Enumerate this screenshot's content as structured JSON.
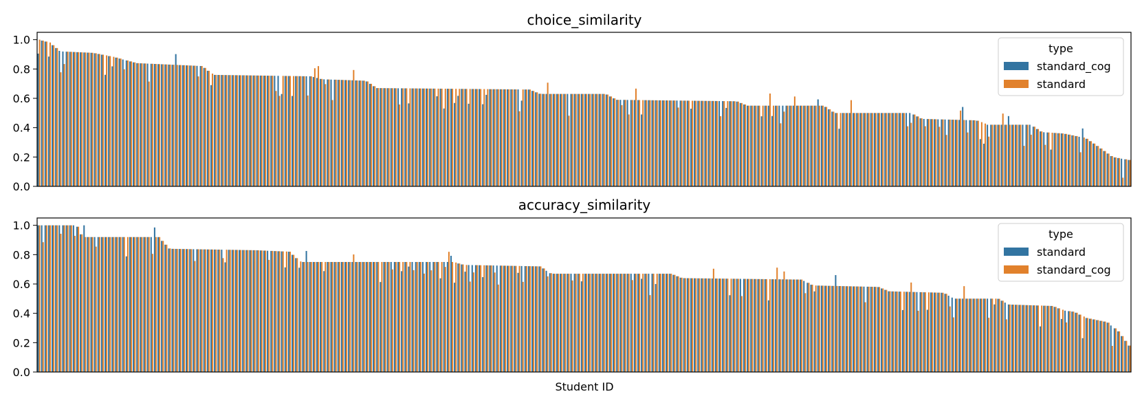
{
  "figure": {
    "xlabel": "Student ID"
  },
  "chart_data": [
    {
      "type": "bar",
      "title": "choice_similarity",
      "xlabel": "",
      "ylabel": "",
      "ylim": [
        0,
        1.05
      ],
      "yticks": [
        "0.0",
        "0.2",
        "0.4",
        "0.6",
        "0.8",
        "1.0"
      ],
      "x_tick_labels": "none",
      "grid": false,
      "legend": {
        "title": "type",
        "position": "top-right"
      },
      "n_students": 310,
      "profile": {
        "description_keys": [
          "x_fraction",
          "value"
        ],
        "points": [
          [
            0,
            1.0
          ],
          [
            0.01,
            0.98
          ],
          [
            0.02,
            0.92
          ],
          [
            0.05,
            0.91
          ],
          [
            0.07,
            0.88
          ],
          [
            0.09,
            0.84
          ],
          [
            0.15,
            0.82
          ],
          [
            0.16,
            0.76
          ],
          [
            0.25,
            0.75
          ],
          [
            0.26,
            0.73
          ],
          [
            0.3,
            0.72
          ],
          [
            0.31,
            0.67
          ],
          [
            0.45,
            0.66
          ],
          [
            0.46,
            0.63
          ],
          [
            0.52,
            0.63
          ],
          [
            0.53,
            0.59
          ],
          [
            0.64,
            0.58
          ],
          [
            0.65,
            0.55
          ],
          [
            0.72,
            0.55
          ],
          [
            0.73,
            0.5
          ],
          [
            0.8,
            0.5
          ],
          [
            0.81,
            0.46
          ],
          [
            0.86,
            0.45
          ],
          [
            0.87,
            0.42
          ],
          [
            0.91,
            0.42
          ],
          [
            0.92,
            0.37
          ],
          [
            0.94,
            0.36
          ],
          [
            0.96,
            0.33
          ],
          [
            0.97,
            0.28
          ],
          [
            0.985,
            0.2
          ],
          [
            1.0,
            0.18
          ]
        ]
      },
      "series": [
        {
          "name": "standard_cog",
          "color": "#3274a1"
        },
        {
          "name": "standard",
          "color": "#e1812c"
        }
      ]
    },
    {
      "type": "bar",
      "title": "accuracy_similarity",
      "xlabel": "Student ID",
      "ylabel": "",
      "ylim": [
        0,
        1.05
      ],
      "yticks": [
        "0.0",
        "0.2",
        "0.4",
        "0.6",
        "0.8",
        "1.0"
      ],
      "x_tick_labels": "none",
      "grid": false,
      "legend": {
        "title": "type",
        "position": "top-right"
      },
      "n_students": 310,
      "profile": {
        "description_keys": [
          "x_fraction",
          "value"
        ],
        "points": [
          [
            0,
            1.0
          ],
          [
            0.035,
            1.0
          ],
          [
            0.04,
            0.92
          ],
          [
            0.11,
            0.92
          ],
          [
            0.12,
            0.84
          ],
          [
            0.2,
            0.83
          ],
          [
            0.23,
            0.82
          ],
          [
            0.24,
            0.75
          ],
          [
            0.38,
            0.75
          ],
          [
            0.39,
            0.73
          ],
          [
            0.46,
            0.72
          ],
          [
            0.47,
            0.67
          ],
          [
            0.58,
            0.67
          ],
          [
            0.59,
            0.64
          ],
          [
            0.7,
            0.63
          ],
          [
            0.71,
            0.59
          ],
          [
            0.77,
            0.58
          ],
          [
            0.78,
            0.55
          ],
          [
            0.83,
            0.54
          ],
          [
            0.84,
            0.5
          ],
          [
            0.88,
            0.5
          ],
          [
            0.89,
            0.46
          ],
          [
            0.93,
            0.45
          ],
          [
            0.94,
            0.42
          ],
          [
            0.95,
            0.41
          ],
          [
            0.96,
            0.37
          ],
          [
            0.98,
            0.34
          ],
          [
            0.99,
            0.28
          ],
          [
            1.0,
            0.18
          ]
        ]
      },
      "series": [
        {
          "name": "standard",
          "color": "#3274a1"
        },
        {
          "name": "standard_cog",
          "color": "#e1812c"
        }
      ]
    }
  ]
}
